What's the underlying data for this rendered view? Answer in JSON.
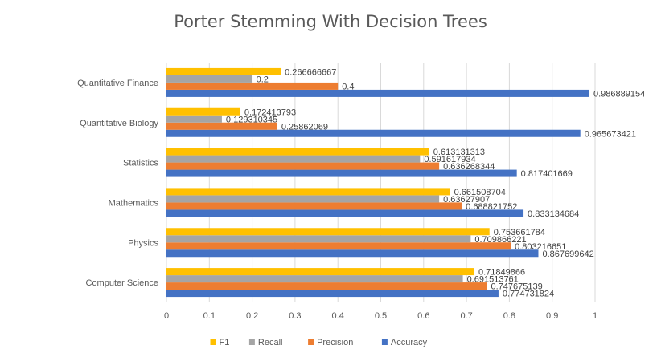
{
  "chart_data": {
    "type": "bar",
    "orientation": "horizontal",
    "title": "Porter Stemming With Decision Trees",
    "xlabel": "",
    "ylabel": "",
    "xlim": [
      0,
      1
    ],
    "xticks": [
      "0",
      "0.1",
      "0.2",
      "0.3",
      "0.4",
      "0.5",
      "0.6",
      "0.7",
      "0.8",
      "0.9",
      "1"
    ],
    "grid": true,
    "legend_position": "bottom",
    "categories": [
      "Computer Science",
      "Physics",
      "Mathematics",
      "Statistics",
      "Quantitative Biology",
      "Quantitative Finance"
    ],
    "series": [
      {
        "name": "Accuracy",
        "color": "#4472c4",
        "values": [
          0.774731824,
          0.867699642,
          0.833134684,
          0.817401669,
          0.965673421,
          0.986889154
        ],
        "labels": [
          "0.774731824",
          "0.867699642",
          "0.833134684",
          "0.817401669",
          "0.965673421",
          "0.986889154"
        ]
      },
      {
        "name": "Precision",
        "color": "#ed7d31",
        "values": [
          0.747675139,
          0.803216651,
          0.688821752,
          0.636268344,
          0.25862069,
          0.4
        ],
        "labels": [
          "0.747675139",
          "0.803216651",
          "0.688821752",
          "0.636268344",
          "0.25862069",
          "0.4"
        ]
      },
      {
        "name": "Recall",
        "color": "#a5a5a5",
        "values": [
          0.691513761,
          0.709866221,
          0.63627907,
          0.591617934,
          0.129310345,
          0.2
        ],
        "labels": [
          "0.691513761",
          "0.709866221",
          "0.63627907",
          "0.591617934",
          "0.129310345",
          "0.2"
        ]
      },
      {
        "name": "F1",
        "color": "#ffc000",
        "values": [
          0.71849866,
          0.753661784,
          0.661508704,
          0.613131313,
          0.172413793,
          0.266666667
        ],
        "labels": [
          "0.71849866",
          "0.753661784",
          "0.661508704",
          "0.613131313",
          "0.172413793",
          "0.266666667"
        ]
      }
    ],
    "legend_order": [
      "F1",
      "Recall",
      "Precision",
      "Accuracy"
    ]
  }
}
